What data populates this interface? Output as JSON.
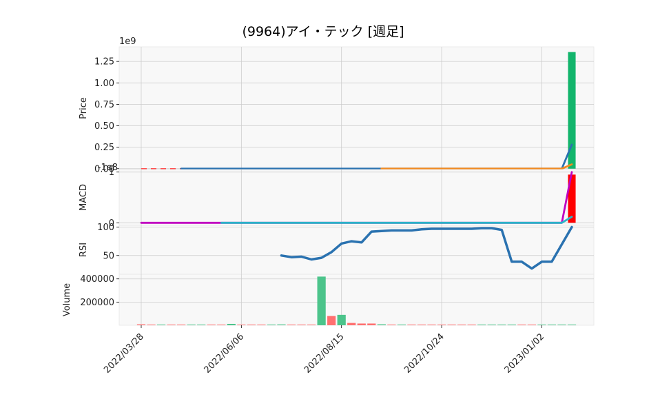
{
  "title": "(9964)アイ・テック [週足]",
  "colors": {
    "panel_bg": "#f8f8f8",
    "grid": "#cccccc",
    "up": "#13b56c",
    "down": "#ff5050",
    "line_blue": "#2a72b0",
    "line_orange": "#f28a1f",
    "line_magenta": "#c000c0",
    "line_cyan": "#2bb5c8",
    "macd_hist": "#ff0000",
    "vol_up": "#4cc48b",
    "vol_down": "#ff7070"
  },
  "x_axis": {
    "tick_labels": [
      "2022/03/28",
      "2022/06/06",
      "2022/08/15",
      "2022/10/24",
      "2023/01/02"
    ],
    "tick_weeks": [
      0,
      10,
      20,
      30,
      40
    ],
    "week_count": 44
  },
  "chart_data": [
    {
      "type": "line",
      "panel": "price",
      "ylabel": "Price",
      "offset_text": "1e9",
      "y_ticks": [
        "0.00",
        "0.25",
        "0.50",
        "0.75",
        "1.00",
        "1.25"
      ],
      "y_tick_values": [
        0,
        0.25,
        0.5,
        0.75,
        1.0,
        1.25
      ],
      "ylim": [
        -0.01,
        1.42
      ],
      "candles": {
        "week": 43,
        "open": 0,
        "close": 1.36,
        "direction": "up"
      },
      "flat_dash_week_range": [
        0,
        4
      ],
      "series": [
        {
          "color_key": "line_blue",
          "points": [
            [
              4,
              0
            ],
            [
              24,
              0
            ],
            [
              42,
              0
            ],
            [
              43,
              0.28
            ]
          ]
        },
        {
          "color_key": "line_orange",
          "points": [
            [
              24,
              0
            ],
            [
              42,
              0
            ],
            [
              43,
              0.05
            ]
          ]
        }
      ]
    },
    {
      "type": "line",
      "panel": "macd",
      "ylabel": "MACD",
      "offset_text": "-1e8",
      "y_ticks": [
        "0",
        "1"
      ],
      "y_tick_values": [
        0,
        1
      ],
      "ylim": [
        -0.05,
        1.05
      ],
      "series": [
        {
          "color_key": "line_magenta",
          "points": [
            [
              0,
              0
            ],
            [
              8,
              0
            ],
            [
              42,
              0
            ],
            [
              43,
              1.0
            ]
          ]
        },
        {
          "color_key": "line_cyan",
          "points": [
            [
              8,
              0
            ],
            [
              42,
              0
            ],
            [
              43,
              0.12
            ]
          ]
        }
      ],
      "histogram": {
        "week": 43,
        "value": 0.95
      }
    },
    {
      "type": "line",
      "panel": "rsi",
      "ylabel": "RSI",
      "y_ticks": [
        "50",
        "100"
      ],
      "y_tick_values": [
        50,
        100
      ],
      "ylim": [
        17,
        103
      ],
      "series": [
        {
          "color_key": "line_blue",
          "points": [
            [
              14,
              50
            ],
            [
              15,
              47
            ],
            [
              16,
              48
            ],
            [
              17,
              43
            ],
            [
              18,
              46
            ],
            [
              19,
              56
            ],
            [
              20,
              71
            ],
            [
              21,
              75
            ],
            [
              22,
              73
            ],
            [
              23,
              92
            ],
            [
              24,
              93
            ],
            [
              25,
              94
            ],
            [
              26,
              94
            ],
            [
              27,
              94
            ],
            [
              28,
              96
            ],
            [
              29,
              97
            ],
            [
              30,
              97
            ],
            [
              31,
              97
            ],
            [
              32,
              97
            ],
            [
              33,
              97
            ],
            [
              34,
              98
            ],
            [
              35,
              98
            ],
            [
              36,
              95
            ],
            [
              37,
              39
            ],
            [
              38,
              39
            ],
            [
              39,
              27
            ],
            [
              40,
              39
            ],
            [
              41,
              39
            ],
            [
              43,
              100
            ]
          ]
        }
      ]
    },
    {
      "type": "bar",
      "panel": "volume",
      "ylabel": "Volume",
      "y_ticks": [
        "200000",
        "400000"
      ],
      "y_tick_values": [
        200000,
        400000
      ],
      "ylim": [
        0,
        440000
      ],
      "bars": [
        [
          0,
          8000,
          "down"
        ],
        [
          1,
          3000,
          "down"
        ],
        [
          2,
          5000,
          "up"
        ],
        [
          3,
          3000,
          "down"
        ],
        [
          4,
          6000,
          "down"
        ],
        [
          5,
          3000,
          "up"
        ],
        [
          6,
          2000,
          "up"
        ],
        [
          7,
          2000,
          "down"
        ],
        [
          8,
          3000,
          "down"
        ],
        [
          9,
          12000,
          "up"
        ],
        [
          10,
          3000,
          "down"
        ],
        [
          11,
          2000,
          "down"
        ],
        [
          12,
          2000,
          "down"
        ],
        [
          13,
          3000,
          "up"
        ],
        [
          14,
          7000,
          "up"
        ],
        [
          15,
          3000,
          "down"
        ],
        [
          16,
          2000,
          "down"
        ],
        [
          17,
          5000,
          "down"
        ],
        [
          18,
          420000,
          "up"
        ],
        [
          19,
          80000,
          "down"
        ],
        [
          20,
          90000,
          "up"
        ],
        [
          21,
          20000,
          "down"
        ],
        [
          22,
          15000,
          "down"
        ],
        [
          23,
          15000,
          "down"
        ],
        [
          24,
          8000,
          "up"
        ],
        [
          25,
          4000,
          "down"
        ],
        [
          26,
          6000,
          "up"
        ],
        [
          27,
          5000,
          "down"
        ],
        [
          28,
          3000,
          "down"
        ],
        [
          29,
          3000,
          "down"
        ],
        [
          30,
          3000,
          "down"
        ],
        [
          31,
          2000,
          "down"
        ],
        [
          32,
          2000,
          "down"
        ],
        [
          33,
          2000,
          "down"
        ],
        [
          34,
          2000,
          "up"
        ],
        [
          35,
          2000,
          "up"
        ],
        [
          36,
          2000,
          "up"
        ],
        [
          37,
          2000,
          "up"
        ],
        [
          38,
          2000,
          "down"
        ],
        [
          39,
          2000,
          "down"
        ],
        [
          40,
          2000,
          "up"
        ],
        [
          41,
          3000,
          "up"
        ],
        [
          42,
          2000,
          "up"
        ],
        [
          43,
          5000,
          "up"
        ]
      ]
    }
  ]
}
